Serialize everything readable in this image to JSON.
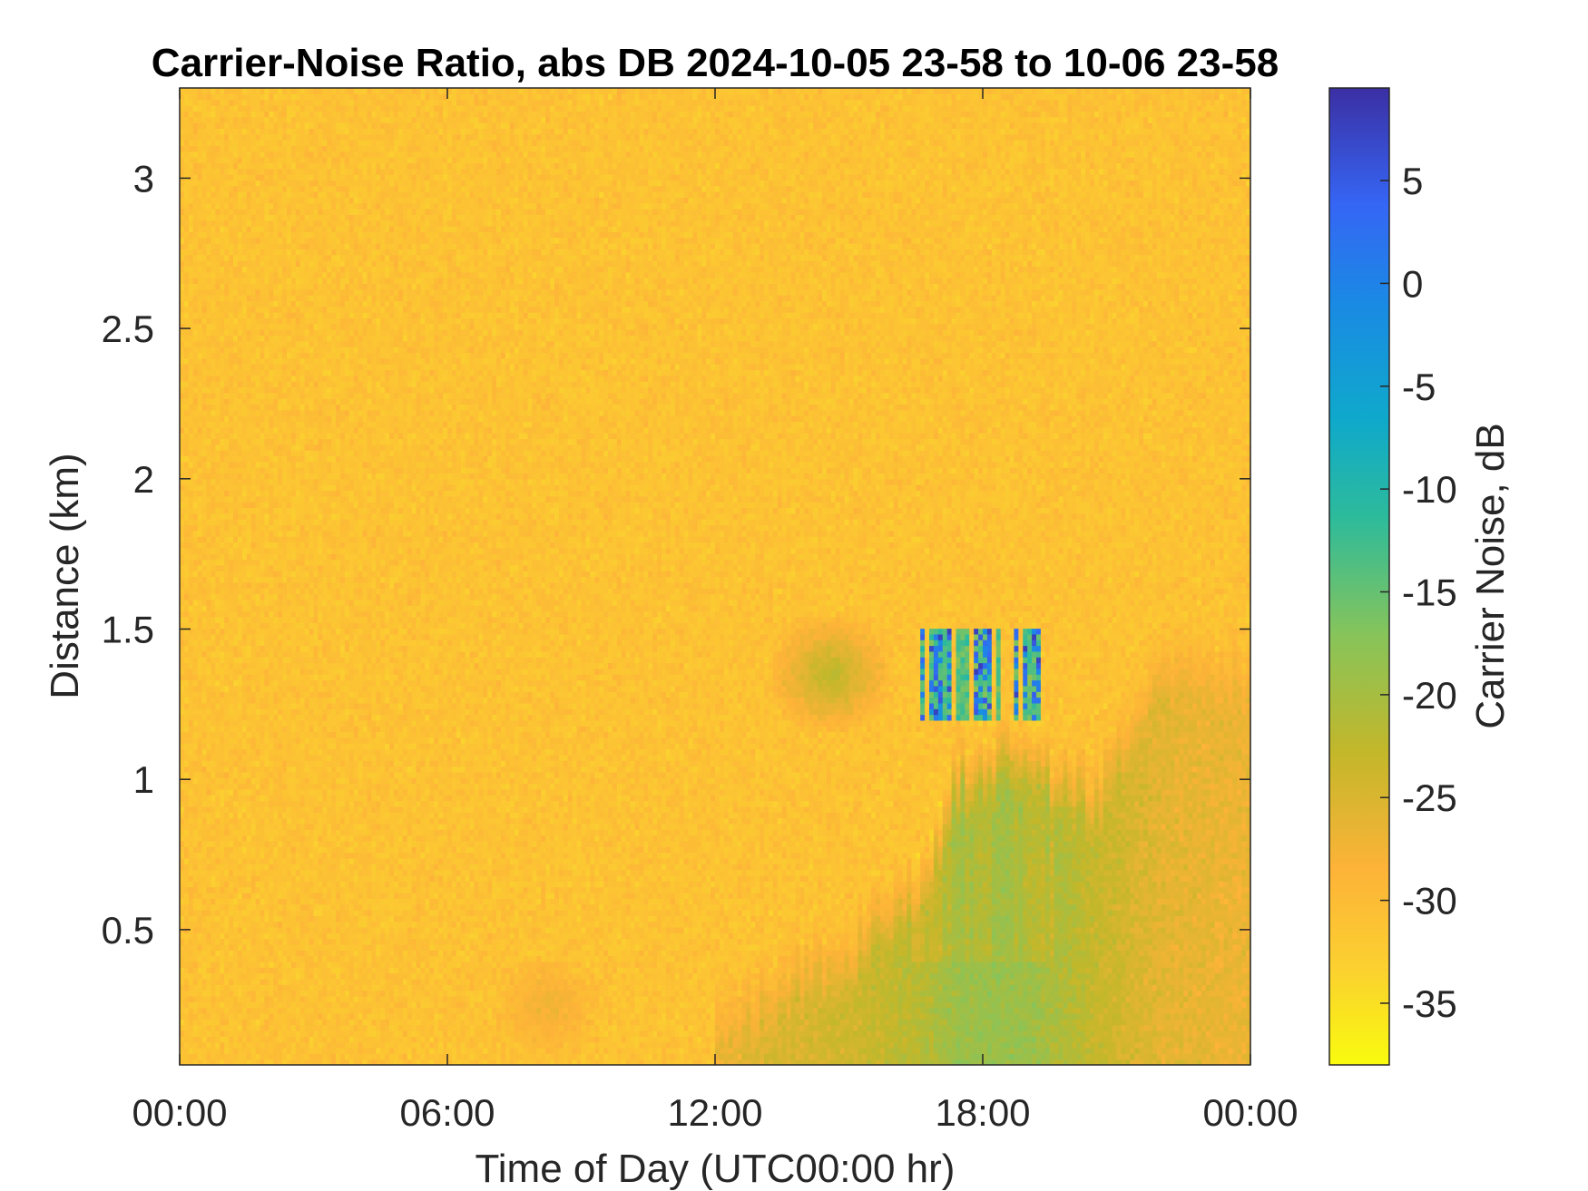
{
  "chart_data": {
    "type": "heatmap",
    "title": "Carrier-Noise Ratio, abs DB 2024-10-05 23-58 to 10-06 23-58",
    "xlabel": "Time of Day (UTC00:00 hr)",
    "ylabel": "Distance (km)",
    "colorbar_label": "Carrier Noise, dB",
    "xlim_hours": [
      0,
      24
    ],
    "ylim_km": [
      0.05,
      3.3
    ],
    "clim_db": [
      -38,
      9.5
    ],
    "x_ticks": [
      {
        "value": 0,
        "label": "00:00"
      },
      {
        "value": 6,
        "label": "06:00"
      },
      {
        "value": 12,
        "label": "12:00"
      },
      {
        "value": 18,
        "label": "18:00"
      },
      {
        "value": 24,
        "label": "00:00"
      }
    ],
    "y_ticks": [
      {
        "value": 0.5,
        "label": "0.5"
      },
      {
        "value": 1,
        "label": "1"
      },
      {
        "value": 1.5,
        "label": "1.5"
      },
      {
        "value": 2,
        "label": "2"
      },
      {
        "value": 2.5,
        "label": "2.5"
      },
      {
        "value": 3,
        "label": "3"
      }
    ],
    "colorbar_ticks": [
      {
        "value": 5,
        "label": "5"
      },
      {
        "value": 0,
        "label": "0"
      },
      {
        "value": -5,
        "label": "-5"
      },
      {
        "value": -10,
        "label": "-10"
      },
      {
        "value": -15,
        "label": "-15"
      },
      {
        "value": -20,
        "label": "-20"
      },
      {
        "value": -25,
        "label": "-25"
      },
      {
        "value": -30,
        "label": "-30"
      },
      {
        "value": -35,
        "label": "-35"
      }
    ],
    "colormap": "parula",
    "colors": {
      "background_noise": "#fbb634",
      "aerosol_layer": "#8bcb5a",
      "cloud_return": "#2fbfa0",
      "strong_return": "#3e5bd8"
    },
    "features": {
      "background_db": -31,
      "boundary_layer": [
        {
          "hour": 12.0,
          "top_km": 0.3,
          "db": -27
        },
        {
          "hour": 13.5,
          "top_km": 0.45,
          "db": -25
        },
        {
          "hour": 15.0,
          "top_km": 0.55,
          "db": -24
        },
        {
          "hour": 16.5,
          "top_km": 0.75,
          "db": -22
        },
        {
          "hour": 17.5,
          "top_km": 1.15,
          "db": -19
        },
        {
          "hour": 19.0,
          "top_km": 1.2,
          "db": -19
        },
        {
          "hour": 20.5,
          "top_km": 1.05,
          "db": -23
        },
        {
          "hour": 22.0,
          "top_km": 1.5,
          "db": -26
        },
        {
          "hour": 24.0,
          "top_km": 1.5,
          "db": -27
        }
      ],
      "residual_layer": {
        "hour_range": [
          13.2,
          16.0
        ],
        "km_range": [
          1.15,
          1.55
        ],
        "db": -22
      },
      "morning_haze": {
        "hour_range": [
          7.0,
          9.5
        ],
        "km_range": [
          0.05,
          0.4
        ],
        "db": -27
      },
      "cloud_base": {
        "hour_range": [
          16.6,
          19.3
        ],
        "km_range": [
          1.2,
          1.5
        ],
        "db_min": -3,
        "db_max": 8
      }
    }
  }
}
